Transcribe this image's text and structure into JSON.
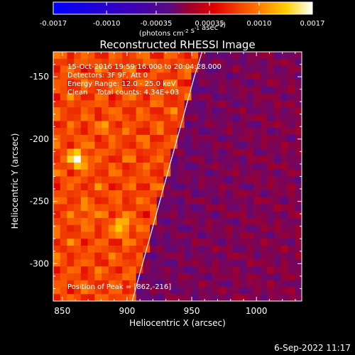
{
  "chart_data": {
    "type": "heatmap",
    "title": "Reconstructed RHESSI Image",
    "xlabel": "Heliocentric X (arcsec)",
    "ylabel": "Heliocentric Y (arcsec)",
    "xlim": [
      843,
      1035
    ],
    "ylim": [
      -330,
      -130
    ],
    "x_ticks": [
      850,
      900,
      950,
      1000
    ],
    "y_ticks": [
      -150,
      -200,
      -250,
      -300
    ],
    "colorbar": {
      "range": [
        -0.0017,
        0.0017
      ],
      "tick_values": [
        -0.0017,
        -0.001,
        -0.00035,
        0.00035,
        0.001,
        0.0017
      ],
      "tick_labels": [
        "-0.0017",
        "-0.0010",
        "-0.00035",
        "0.00035",
        "0.0010",
        "0.0017"
      ],
      "unit_label": "(photons cm⁻² s⁻¹ asec⁻²)"
    },
    "annotations": {
      "time_range": "15-Oct-2016 19:59:16.000 to 20:04:28.000",
      "detectors": "Detectors: 3F 9F, Att 0",
      "energy_range": "Energy Range: 12.0 - 25.0 keV",
      "clean": "Clean    Total counts: 4.34E+03",
      "peak": "Position of Peak = [862,-216]"
    },
    "peak_position": [
      862,
      -216
    ],
    "limb_curve": {
      "x": [
        904,
        912,
        920,
        928,
        936,
        944,
        952,
        958
      ],
      "y": [
        -330,
        -300,
        -270,
        -240,
        -210,
        -180,
        -150,
        -130
      ]
    },
    "hot_spots": [
      {
        "x": 862,
        "y": -216,
        "value": 0.0017
      },
      {
        "x": 896,
        "y": -270,
        "value": 0.00145
      },
      {
        "x": 869,
        "y": -260,
        "value": 0.0011
      },
      {
        "x": 884,
        "y": -190,
        "value": 0.001
      }
    ]
  },
  "footer": {
    "date": "6-Sep-2022 11:17"
  }
}
